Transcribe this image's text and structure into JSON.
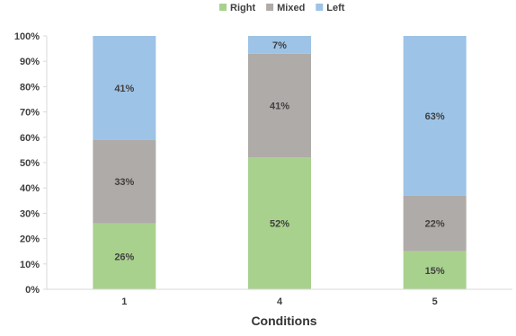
{
  "chart_data": {
    "type": "bar",
    "stacked": true,
    "percent": true,
    "title": "",
    "xlabel": "Conditions",
    "ylabel": "",
    "ylim": [
      0,
      100
    ],
    "yticks": [
      "0%",
      "10%",
      "20%",
      "30%",
      "40%",
      "50%",
      "60%",
      "70%",
      "80%",
      "90%",
      "100%"
    ],
    "categories": [
      "1",
      "4",
      "5"
    ],
    "series": [
      {
        "name": "Right",
        "color": "#a9d18e",
        "values": [
          26,
          52,
          15
        ],
        "labels": [
          "26%",
          "52%",
          "15%"
        ]
      },
      {
        "name": "Mixed",
        "color": "#afaba8",
        "values": [
          33,
          41,
          22
        ],
        "labels": [
          "33%",
          "41%",
          "22%"
        ]
      },
      {
        "name": "Left",
        "color": "#9dc3e6",
        "values": [
          41,
          7,
          63
        ],
        "labels": [
          "41%",
          "7%",
          "63%"
        ]
      }
    ],
    "legend": {
      "position": "top"
    },
    "grid": false
  }
}
